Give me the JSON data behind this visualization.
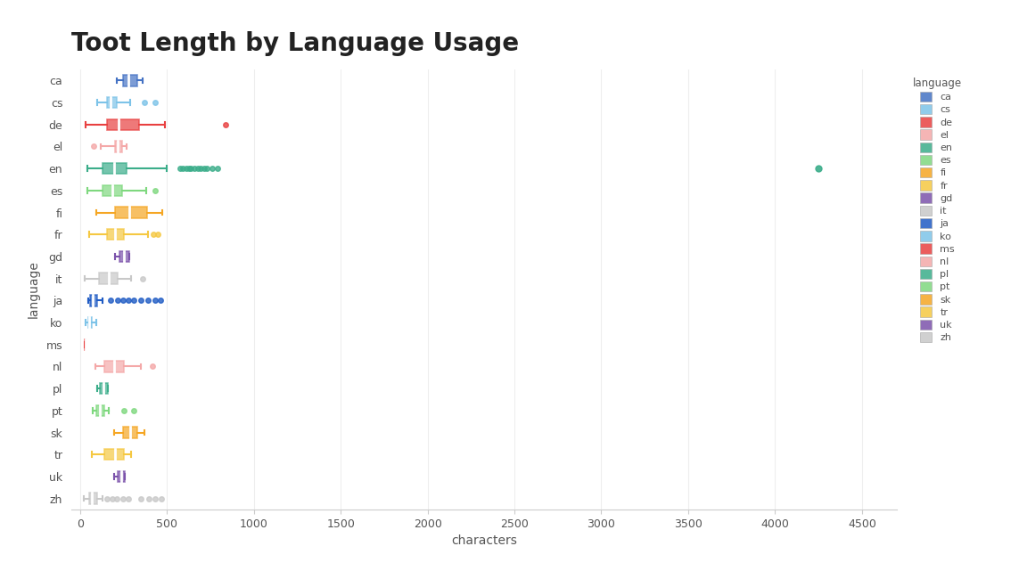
{
  "title": "Toot Length by Language Usage",
  "xlabel": "characters",
  "ylabel": "language",
  "xlim": [
    -50,
    4700
  ],
  "xticks": [
    0,
    500,
    1000,
    1500,
    2000,
    2500,
    3000,
    3500,
    4000,
    4500
  ],
  "background_color": "#ffffff",
  "languages": [
    "ca",
    "cs",
    "de",
    "el",
    "en",
    "es",
    "fi",
    "fr",
    "gd",
    "it",
    "ja",
    "ko",
    "ms",
    "nl",
    "pl",
    "pt",
    "sk",
    "tr",
    "uk",
    "zh"
  ],
  "colors": {
    "ca": "#4472C4",
    "cs": "#7DC3E8",
    "de": "#E84040",
    "el": "#F4A8A8",
    "en": "#3BAD8A",
    "es": "#7FD87F",
    "fi": "#F5A623",
    "fr": "#F5C842",
    "gd": "#7B52AB",
    "it": "#C8C8C8",
    "ja": "#1F5BC4",
    "ko": "#7DC3E8",
    "ms": "#E84040",
    "nl": "#F4A8A8",
    "pl": "#3BAD8A",
    "pt": "#7FD87F",
    "sk": "#F5A623",
    "tr": "#F5C842",
    "uk": "#7B52AB",
    "zh": "#C8C8C8"
  },
  "boxplots": {
    "ca": {
      "whislo": 210,
      "q1": 245,
      "med": 280,
      "q3": 330,
      "whishi": 360,
      "fliers": []
    },
    "cs": {
      "whislo": 100,
      "q1": 155,
      "med": 175,
      "q3": 210,
      "whishi": 290,
      "fliers": [
        370,
        430
      ]
    },
    "de": {
      "whislo": 30,
      "q1": 155,
      "med": 220,
      "q3": 340,
      "whishi": 490,
      "fliers": [
        840
      ]
    },
    "el": {
      "whislo": 120,
      "q1": 200,
      "med": 215,
      "q3": 240,
      "whishi": 270,
      "fliers": [
        80
      ]
    },
    "en": {
      "whislo": 40,
      "q1": 130,
      "med": 195,
      "q3": 270,
      "whishi": 500,
      "fliers": [
        575,
        590,
        610,
        625,
        640,
        660,
        680,
        695,
        715,
        730,
        760,
        790
      ]
    },
    "es": {
      "whislo": 40,
      "q1": 130,
      "med": 185,
      "q3": 240,
      "whishi": 380,
      "fliers": [
        430
      ]
    },
    "fi": {
      "whislo": 95,
      "q1": 200,
      "med": 285,
      "q3": 385,
      "whishi": 475,
      "fliers": []
    },
    "fr": {
      "whislo": 55,
      "q1": 155,
      "med": 200,
      "q3": 255,
      "whishi": 390,
      "fliers": [
        420,
        450
      ]
    },
    "gd": {
      "whislo": 200,
      "q1": 225,
      "med": 255,
      "q3": 285,
      "whishi": 285,
      "fliers": []
    },
    "it": {
      "whislo": 25,
      "q1": 110,
      "med": 165,
      "q3": 215,
      "whishi": 295,
      "fliers": [
        360
      ]
    },
    "ja": {
      "whislo": 45,
      "q1": 60,
      "med": 75,
      "q3": 100,
      "whishi": 130,
      "fliers": [
        175,
        215,
        250,
        280,
        310,
        350,
        390,
        430,
        465
      ]
    },
    "ko": {
      "whislo": 30,
      "q1": 45,
      "med": 55,
      "q3": 70,
      "whishi": 95,
      "fliers": []
    },
    "ms": {
      "whislo": 28,
      "q1": 29,
      "med": 30,
      "q3": 31,
      "whishi": 32,
      "fliers": []
    },
    "nl": {
      "whislo": 90,
      "q1": 140,
      "med": 195,
      "q3": 255,
      "whishi": 350,
      "fliers": [
        415
      ]
    },
    "pl": {
      "whislo": 100,
      "q1": 115,
      "med": 135,
      "q3": 160,
      "whishi": 160,
      "fliers": []
    },
    "pt": {
      "whislo": 75,
      "q1": 95,
      "med": 115,
      "q3": 140,
      "whishi": 165,
      "fliers": [
        255,
        310
      ]
    },
    "sk": {
      "whislo": 195,
      "q1": 250,
      "med": 290,
      "q3": 330,
      "whishi": 370,
      "fliers": []
    },
    "tr": {
      "whislo": 70,
      "q1": 140,
      "med": 200,
      "q3": 255,
      "whishi": 295,
      "fliers": []
    },
    "uk": {
      "whislo": 195,
      "q1": 215,
      "med": 235,
      "q3": 260,
      "whishi": 260,
      "fliers": []
    },
    "zh": {
      "whislo": 20,
      "q1": 50,
      "med": 70,
      "q3": 100,
      "whishi": 130,
      "fliers": [
        155,
        185,
        210,
        245,
        280,
        350,
        395,
        430,
        470
      ]
    }
  },
  "outlier_far": {
    "en": 4250
  },
  "title_fontsize": 20,
  "label_fontsize": 10,
  "tick_fontsize": 9
}
